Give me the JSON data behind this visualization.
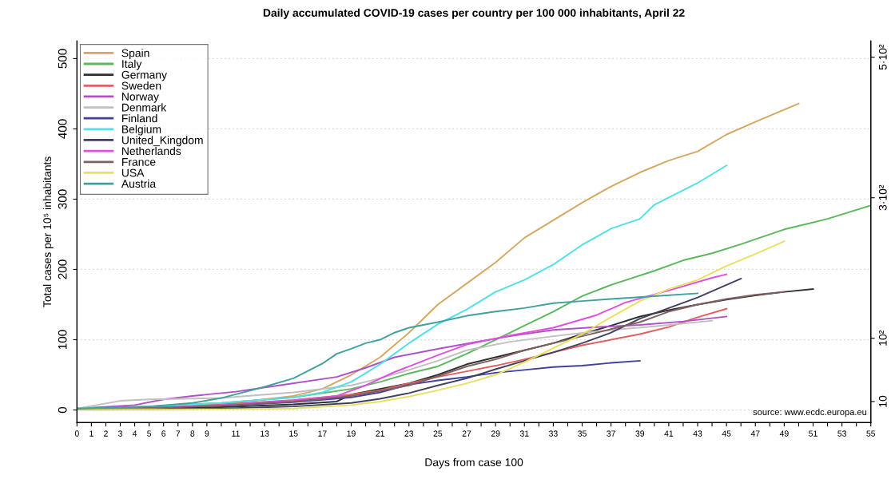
{
  "chart_data": {
    "type": "line",
    "title": "Daily accumulated COVID-19 cases per country per 100 000 inhabitants, April 22",
    "xlabel": "Days from case 100",
    "ylabel": "Total cases per 10⁵ inhabitants",
    "xlim": [
      0,
      55
    ],
    "ylim": [
      -18,
      525
    ],
    "xticks": [
      0,
      1,
      2,
      3,
      4,
      5,
      6,
      7,
      8,
      9,
      {
        "value": 10,
        "label": null
      },
      11,
      {
        "value": 12,
        "label": null
      },
      13,
      {
        "value": 14,
        "label": null
      },
      15,
      {
        "value": 16,
        "label": null
      },
      17,
      {
        "value": 18,
        "label": null
      },
      19,
      {
        "value": 20,
        "label": null
      },
      21,
      {
        "value": 22,
        "label": null
      },
      23,
      {
        "value": 24,
        "label": null
      },
      25,
      {
        "value": 26,
        "label": null
      },
      27,
      {
        "value": 28,
        "label": null
      },
      29,
      {
        "value": 30,
        "label": null
      },
      31,
      {
        "value": 32,
        "label": null
      },
      33,
      {
        "value": 34,
        "label": null
      },
      35,
      {
        "value": 36,
        "label": null
      },
      37,
      {
        "value": 38,
        "label": null
      },
      39,
      {
        "value": 40,
        "label": null
      },
      41,
      {
        "value": 42,
        "label": null
      },
      43,
      {
        "value": 44,
        "label": null
      },
      45,
      {
        "value": 46,
        "label": null
      },
      47,
      {
        "value": 48,
        "label": null
      },
      49,
      {
        "value": 50,
        "label": null
      },
      51,
      {
        "value": 52,
        "label": null
      },
      53,
      {
        "value": 54,
        "label": null
      },
      55
    ],
    "yticks": [
      0,
      100,
      200,
      300,
      400,
      500
    ],
    "y2lim": [
      -20,
      523
    ],
    "y2ticks": [
      10,
      {
        "value": 100,
        "label": "10²"
      },
      {
        "value": 300,
        "label": "3·10²"
      },
      {
        "value": 500,
        "label": "5·10²"
      }
    ],
    "grid": "y",
    "legend": "top left",
    "marker": "none",
    "line_style": "solid",
    "annotations": [
      "source: www.ecdc.europa.eu"
    ],
    "series": [
      {
        "name": "Spain",
        "color": "#d4a860",
        "x": [
          0,
          5,
          10,
          15,
          17,
          19,
          21,
          23,
          25,
          27,
          29,
          31,
          33,
          35,
          37,
          39,
          41,
          43,
          45,
          47,
          50
        ],
        "values": [
          2,
          4,
          8,
          20,
          30,
          50,
          75,
          110,
          150,
          180,
          210,
          245,
          270,
          295,
          318,
          338,
          355,
          368,
          392,
          410,
          436
        ]
      },
      {
        "name": "Italy",
        "color": "#5cb85c",
        "x": [
          0,
          5,
          10,
          15,
          19,
          21,
          23,
          25,
          27,
          29,
          31,
          33,
          35,
          37,
          40,
          42,
          44,
          46,
          49,
          52,
          55
        ],
        "values": [
          2,
          5,
          10,
          18,
          30,
          40,
          52,
          62,
          80,
          100,
          120,
          140,
          162,
          178,
          198,
          213,
          223,
          236,
          257,
          272,
          291
        ]
      },
      {
        "name": "Germany",
        "color": "#303030",
        "x": [
          0,
          5,
          10,
          15,
          18,
          19,
          21,
          23,
          25,
          27,
          29,
          31,
          33,
          35,
          37,
          39,
          41,
          43,
          45,
          47,
          49,
          51
        ],
        "values": [
          1,
          2,
          4,
          8,
          12,
          22,
          30,
          38,
          50,
          65,
          75,
          85,
          95,
          108,
          120,
          133,
          142,
          150,
          157,
          163,
          168,
          172
        ]
      },
      {
        "name": "Sweden",
        "color": "#e06060",
        "x": [
          0,
          5,
          10,
          15,
          19,
          21,
          23,
          25,
          27,
          29,
          31,
          33,
          35,
          37,
          39,
          41,
          43,
          45
        ],
        "values": [
          1,
          4,
          8,
          14,
          22,
          28,
          38,
          47,
          55,
          63,
          72,
          82,
          92,
          100,
          108,
          118,
          132,
          144
        ]
      },
      {
        "name": "Norway",
        "color": "#b050c8",
        "x": [
          0,
          4,
          6,
          8,
          11,
          14,
          18,
          20,
          22,
          25,
          28,
          30,
          33,
          36,
          39,
          42,
          45
        ],
        "values": [
          2,
          7,
          15,
          20,
          26,
          35,
          47,
          60,
          75,
          87,
          98,
          105,
          114,
          118,
          121,
          126,
          133
        ]
      },
      {
        "name": "Denmark",
        "color": "#c0c0c0",
        "x": [
          0,
          3,
          5,
          10,
          15,
          19,
          21,
          23,
          25,
          27,
          30,
          33,
          36,
          40,
          44
        ],
        "values": [
          2,
          13,
          15,
          17,
          25,
          35,
          45,
          57,
          70,
          85,
          97,
          105,
          112,
          119,
          127
        ]
      },
      {
        "name": "Finland",
        "color": "#4040a0",
        "x": [
          0,
          5,
          10,
          15,
          19,
          21,
          23,
          25,
          27,
          29,
          31,
          33,
          35,
          37,
          39
        ],
        "values": [
          1,
          3,
          6,
          11,
          18,
          25,
          36,
          42,
          47,
          53,
          57,
          61,
          63,
          67,
          70
        ]
      },
      {
        "name": "Belgium",
        "color": "#50e0e8",
        "x": [
          0,
          5,
          10,
          15,
          17,
          19,
          21,
          23,
          25,
          27,
          29,
          31,
          33,
          35,
          37,
          39,
          40,
          43,
          45
        ],
        "values": [
          2,
          4,
          10,
          18,
          25,
          40,
          65,
          95,
          122,
          143,
          168,
          185,
          207,
          235,
          258,
          272,
          292,
          323,
          348
        ]
      },
      {
        "name": "United_Kingdom",
        "color": "#404060",
        "x": [
          0,
          5,
          10,
          15,
          19,
          21,
          23,
          25,
          27,
          29,
          31,
          33,
          35,
          37,
          39,
          41,
          43,
          45,
          46
        ],
        "values": [
          1,
          1,
          2,
          5,
          10,
          16,
          24,
          35,
          45,
          58,
          70,
          82,
          95,
          110,
          130,
          145,
          160,
          178,
          187
        ]
      },
      {
        "name": "Netherlands",
        "color": "#e050e0",
        "x": [
          0,
          5,
          10,
          15,
          18,
          20,
          22,
          25,
          27,
          30,
          33,
          36,
          38,
          41,
          44,
          45
        ],
        "values": [
          1,
          3,
          7,
          14,
          20,
          35,
          54,
          78,
          93,
          106,
          117,
          135,
          153,
          170,
          188,
          193
        ]
      },
      {
        "name": "France",
        "color": "#806060",
        "x": [
          0,
          5,
          10,
          15,
          19,
          21,
          23,
          25,
          27,
          29,
          31,
          33,
          35,
          37,
          39,
          41,
          43,
          45,
          47,
          49
        ],
        "values": [
          1,
          3,
          6,
          12,
          20,
          27,
          35,
          48,
          62,
          72,
          85,
          95,
          105,
          115,
          125,
          140,
          150,
          158,
          164,
          168
        ]
      },
      {
        "name": "USA",
        "color": "#e8e060",
        "x": [
          0,
          5,
          10,
          15,
          19,
          21,
          23,
          25,
          27,
          29,
          31,
          33,
          35,
          37,
          39,
          41,
          43,
          45,
          47,
          49
        ],
        "values": [
          1,
          1,
          1,
          2,
          7,
          12,
          19,
          28,
          38,
          50,
          68,
          88,
          108,
          132,
          155,
          172,
          185,
          205,
          222,
          240
        ]
      },
      {
        "name": "Austria",
        "color": "#40a0a0",
        "x": [
          0,
          5,
          8,
          10,
          13,
          15,
          17,
          18,
          19,
          20,
          21,
          22,
          23,
          25,
          27,
          29,
          31,
          33,
          35,
          37,
          40,
          43
        ],
        "values": [
          2,
          5,
          10,
          17,
          33,
          45,
          66,
          80,
          87,
          95,
          100,
          110,
          117,
          125,
          134,
          140,
          145,
          152,
          155,
          158,
          162,
          166
        ]
      }
    ]
  }
}
